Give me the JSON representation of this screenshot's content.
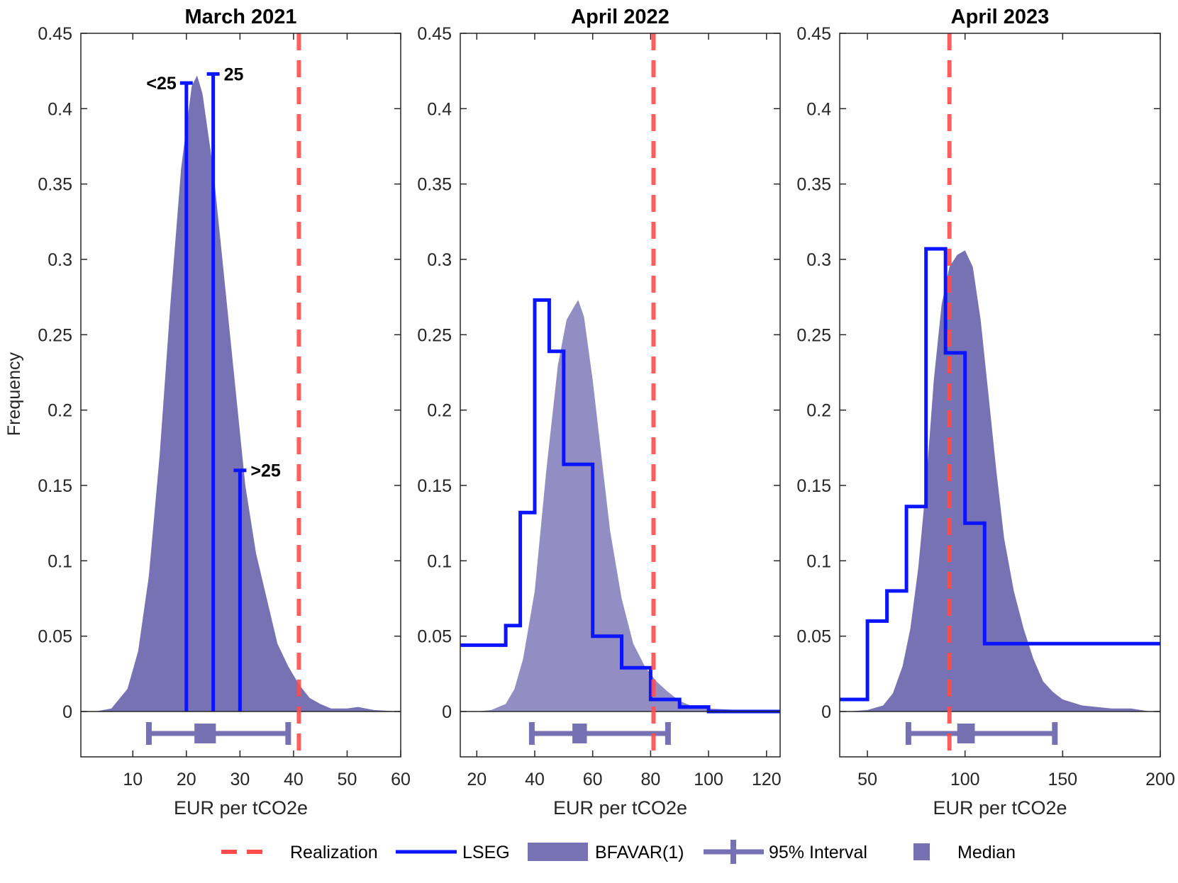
{
  "chart_data": {
    "type": "area",
    "ylabel": "Frequency",
    "ylim": [
      -0.03,
      0.45
    ],
    "yticks": [
      0,
      0.05,
      0.1,
      0.15,
      0.2,
      0.25,
      0.3,
      0.35,
      0.4,
      0.45
    ],
    "ytick_labels": [
      "0",
      "0.05",
      "0.1",
      "0.15",
      "0.2",
      "0.25",
      "0.3",
      "0.35",
      "0.4",
      "0.45"
    ],
    "legend": {
      "placement": "bottom",
      "entries": [
        "Realization",
        "LSEG",
        "BFAVAR(1)",
        "95% Interval",
        "Median"
      ]
    },
    "colors": {
      "realization": "#ff4d4d",
      "lseg": "#0a14ff",
      "bfavar": "#7672b4",
      "bfavar_light": "#928ec4",
      "interval": "#7571b3",
      "axis": "#262626"
    },
    "panels": [
      {
        "title": "March 2021",
        "xlabel": "EUR per tCO2e",
        "xlim": [
          0.3,
          60
        ],
        "xticks": [
          10,
          20,
          30,
          40,
          50,
          60
        ],
        "xtick_labels": [
          "10",
          "20",
          "30",
          "40",
          "50",
          "60"
        ],
        "realization": 41,
        "lseg_type": "stems",
        "lseg_stems": [
          {
            "x": 20,
            "y": 0.417,
            "label": "<25"
          },
          {
            "x": 25,
            "y": 0.423,
            "label": "25"
          },
          {
            "x": 30,
            "y": 0.16,
            "label": ">25"
          }
        ],
        "density_light": false,
        "density": [
          [
            3,
            0
          ],
          [
            6,
            0.002
          ],
          [
            9,
            0.015
          ],
          [
            11,
            0.04
          ],
          [
            13,
            0.09
          ],
          [
            15,
            0.17
          ],
          [
            17,
            0.27
          ],
          [
            19,
            0.36
          ],
          [
            21,
            0.415
          ],
          [
            22,
            0.422
          ],
          [
            23,
            0.41
          ],
          [
            25,
            0.36
          ],
          [
            27,
            0.29
          ],
          [
            29,
            0.22
          ],
          [
            31,
            0.15
          ],
          [
            33,
            0.105
          ],
          [
            35,
            0.075
          ],
          [
            37,
            0.045
          ],
          [
            39,
            0.03
          ],
          [
            41,
            0.018
          ],
          [
            43,
            0.009
          ],
          [
            45,
            0.005
          ],
          [
            47,
            0.002
          ],
          [
            50,
            0.002
          ],
          [
            52,
            0.003
          ],
          [
            55,
            0.001
          ],
          [
            60,
            0
          ]
        ],
        "interval": [
          13,
          39
        ],
        "median_box": [
          21.5,
          25.5
        ]
      },
      {
        "title": "April 2022",
        "xlabel": "EUR per tCO2e",
        "xlim": [
          14.3,
          124.7
        ],
        "xticks": [
          20,
          40,
          60,
          80,
          100,
          120
        ],
        "xtick_labels": [
          "20",
          "40",
          "60",
          "80",
          "100",
          "120"
        ],
        "realization": 81,
        "lseg_type": "steps",
        "lseg_steps": [
          [
            14.3,
            30,
            0.044
          ],
          [
            30,
            35,
            0.057
          ],
          [
            35,
            40,
            0.132
          ],
          [
            40,
            45,
            0.273
          ],
          [
            45,
            50,
            0.239
          ],
          [
            50,
            60,
            0.164
          ],
          [
            60,
            70,
            0.05
          ],
          [
            70,
            80,
            0.029
          ],
          [
            80,
            90,
            0.008
          ],
          [
            90,
            100,
            0.003
          ],
          [
            100,
            124.7,
            0
          ]
        ],
        "density_light": true,
        "density": [
          [
            20,
            0
          ],
          [
            25,
            0.001
          ],
          [
            30,
            0.005
          ],
          [
            33,
            0.015
          ],
          [
            36,
            0.035
          ],
          [
            40,
            0.08
          ],
          [
            44,
            0.16
          ],
          [
            48,
            0.23
          ],
          [
            51,
            0.26
          ],
          [
            54,
            0.27
          ],
          [
            55,
            0.273
          ],
          [
            57,
            0.262
          ],
          [
            60,
            0.22
          ],
          [
            63,
            0.17
          ],
          [
            66,
            0.12
          ],
          [
            70,
            0.075
          ],
          [
            74,
            0.045
          ],
          [
            78,
            0.03
          ],
          [
            82,
            0.02
          ],
          [
            86,
            0.013
          ],
          [
            90,
            0.007
          ],
          [
            95,
            0.003
          ],
          [
            100,
            0.002
          ],
          [
            110,
            0.001
          ],
          [
            124.7,
            0
          ]
        ],
        "interval": [
          39,
          86
        ],
        "median_box": [
          53,
          58
        ]
      },
      {
        "title": "April 2023",
        "xlabel": "EUR per tCO2e",
        "xlim": [
          35.8,
          200
        ],
        "xticks": [
          50,
          100,
          150,
          200
        ],
        "xtick_labels": [
          "50",
          "100",
          "150",
          "200"
        ],
        "realization": 92,
        "lseg_type": "steps",
        "lseg_steps": [
          [
            35.8,
            50,
            0.008
          ],
          [
            50,
            60,
            0.06
          ],
          [
            60,
            70,
            0.08
          ],
          [
            70,
            80,
            0.136
          ],
          [
            80,
            90,
            0.307
          ],
          [
            90,
            100,
            0.238
          ],
          [
            100,
            110,
            0.125
          ],
          [
            110,
            200,
            0.045
          ]
        ],
        "density_light": false,
        "density": [
          [
            40,
            0
          ],
          [
            50,
            0.001
          ],
          [
            58,
            0.004
          ],
          [
            63,
            0.012
          ],
          [
            68,
            0.03
          ],
          [
            72,
            0.055
          ],
          [
            76,
            0.095
          ],
          [
            80,
            0.15
          ],
          [
            84,
            0.22
          ],
          [
            88,
            0.27
          ],
          [
            92,
            0.295
          ],
          [
            96,
            0.303
          ],
          [
            100,
            0.306
          ],
          [
            104,
            0.295
          ],
          [
            108,
            0.26
          ],
          [
            112,
            0.21
          ],
          [
            116,
            0.16
          ],
          [
            120,
            0.115
          ],
          [
            125,
            0.08
          ],
          [
            130,
            0.055
          ],
          [
            135,
            0.035
          ],
          [
            140,
            0.02
          ],
          [
            145,
            0.013
          ],
          [
            150,
            0.008
          ],
          [
            160,
            0.004
          ],
          [
            175,
            0.002
          ],
          [
            185,
            0.002
          ],
          [
            195,
            0
          ]
        ],
        "interval": [
          71,
          146
        ],
        "median_box": [
          96,
          105
        ]
      }
    ]
  }
}
